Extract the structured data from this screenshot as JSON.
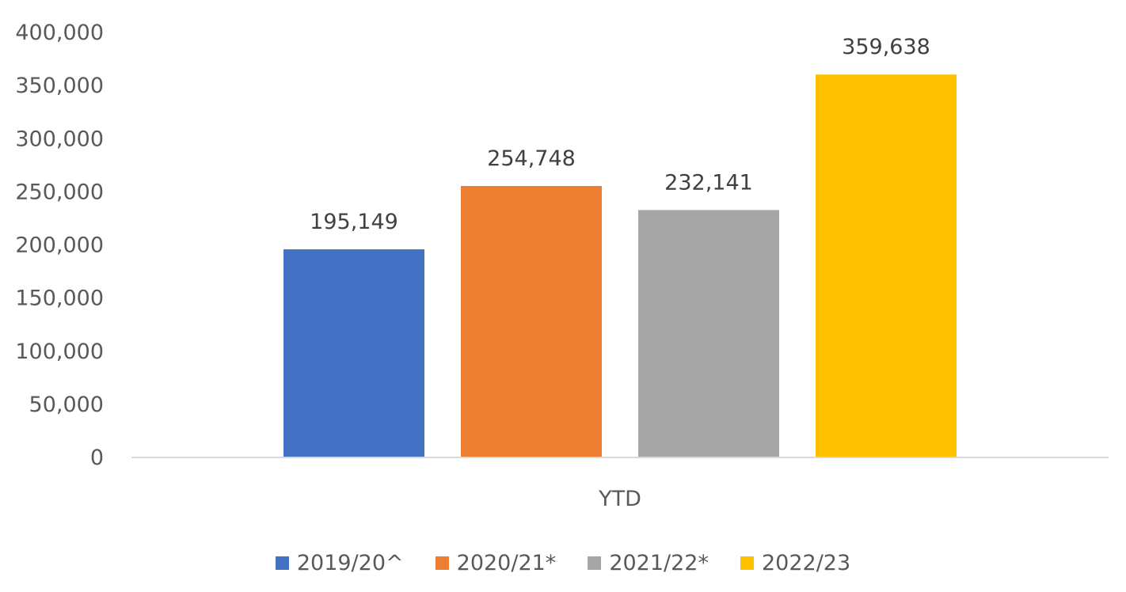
{
  "chart_data": {
    "type": "bar",
    "title": "",
    "xlabel": "",
    "ylabel": "",
    "categories": [
      "YTD"
    ],
    "series": [
      {
        "name": "2019/20^",
        "values": [
          195149
        ],
        "label": "195,149",
        "color": "#4472C4"
      },
      {
        "name": "2020/21*",
        "values": [
          254748
        ],
        "label": "254,748",
        "color": "#ED7D31"
      },
      {
        "name": "2021/22*",
        "values": [
          232141
        ],
        "label": "232,141",
        "color": "#A5A5A5"
      },
      {
        "name": "2022/23",
        "values": [
          359638
        ],
        "label": "359,638",
        "color": "#FFC000"
      }
    ],
    "ylim": [
      0,
      400000
    ],
    "y_ticks": [
      {
        "value": 0,
        "label": "0"
      },
      {
        "value": 50000,
        "label": "50,000"
      },
      {
        "value": 100000,
        "label": "100,000"
      },
      {
        "value": 150000,
        "label": "150,000"
      },
      {
        "value": 200000,
        "label": "200,000"
      },
      {
        "value": 250000,
        "label": "250,000"
      },
      {
        "value": 300000,
        "label": "300,000"
      },
      {
        "value": 350000,
        "label": "350,000"
      },
      {
        "value": 400000,
        "label": "400,000"
      }
    ],
    "grid": false,
    "legend_position": "bottom"
  }
}
